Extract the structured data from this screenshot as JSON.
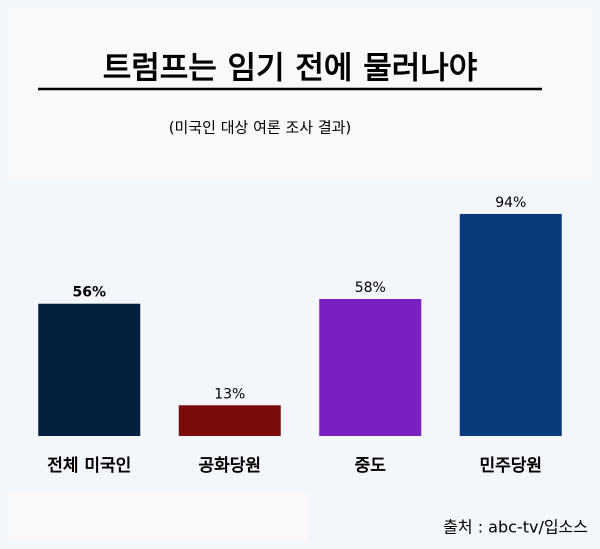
{
  "chart_data": {
    "type": "bar",
    "title": "트럼프는 임기 전에 물러나야",
    "subtitle": "(미국인 대상 여론 조사 결과)",
    "categories": [
      "전체 미국인",
      "공화당원",
      "중도",
      "민주당원"
    ],
    "values": [
      56,
      13,
      58,
      94
    ],
    "value_labels": [
      "56%",
      "13%",
      "58%",
      "94%"
    ],
    "colors": [
      "#041e3e",
      "#7b0a0a",
      "#7a1fc0",
      "#0b3a7c"
    ],
    "source": "출처 :  abc-tv/입소스"
  }
}
